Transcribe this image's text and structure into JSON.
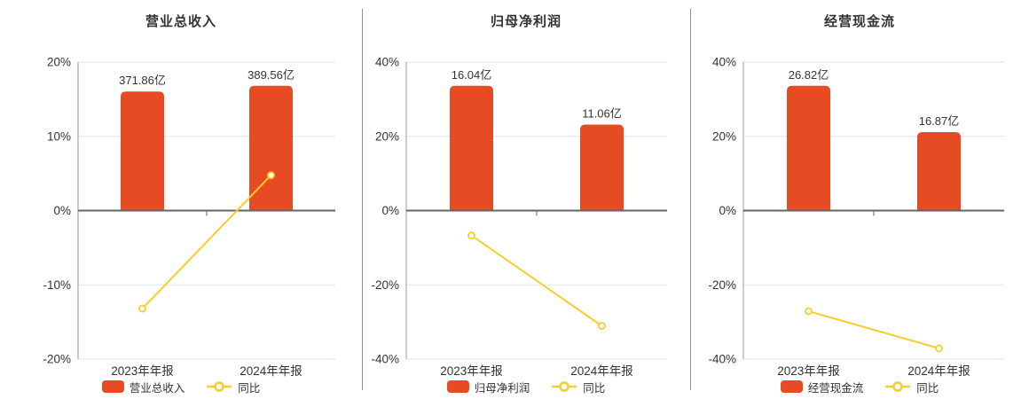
{
  "style": {
    "bar_color": "#e74b24",
    "line_color": "#f6ce2b",
    "marker_fill": "#ffffff",
    "zero_axis_color": "#666666",
    "axis_line_color": "#999999",
    "grid_color": "#dde4ee",
    "text_color": "#333333",
    "divider_color": "#909090",
    "background": "#ffffff"
  },
  "chart_data": [
    {
      "type": "bar",
      "title": "营业总收入",
      "categories": [
        "2023年年报",
        "2024年年报"
      ],
      "series": [
        {
          "name": "营业总收入",
          "kind": "bar",
          "unit": "亿",
          "values_yi": [
            371.86,
            389.56
          ],
          "labels": [
            "371.86亿",
            "389.56亿"
          ]
        },
        {
          "name": "同比",
          "kind": "line",
          "unit": "%",
          "values_pct": [
            -13.2,
            4.76
          ]
        }
      ],
      "ylim": [
        -20,
        20
      ],
      "y_ticks": [
        {
          "v": 20,
          "label": "20%"
        },
        {
          "v": 10,
          "label": "10%"
        },
        {
          "v": 0,
          "label": "0%"
        },
        {
          "v": -10,
          "label": "-10%"
        },
        {
          "v": -20,
          "label": "-20%"
        }
      ],
      "grid": true,
      "legend_position": "bottom"
    },
    {
      "type": "bar",
      "title": "归母净利润",
      "categories": [
        "2023年年报",
        "2024年年报"
      ],
      "series": [
        {
          "name": "归母净利润",
          "kind": "bar",
          "unit": "亿",
          "values_yi": [
            16.04,
            11.06
          ],
          "labels": [
            "16.04亿",
            "11.06亿"
          ]
        },
        {
          "name": "同比",
          "kind": "line",
          "unit": "%",
          "values_pct": [
            -6.7,
            -31.05
          ]
        }
      ],
      "ylim": [
        -40,
        40
      ],
      "y_ticks": [
        {
          "v": 40,
          "label": "40%"
        },
        {
          "v": 20,
          "label": "20%"
        },
        {
          "v": 0,
          "label": "0%"
        },
        {
          "v": -20,
          "label": "-20%"
        },
        {
          "v": -40,
          "label": "-40%"
        }
      ],
      "grid": true,
      "legend_position": "bottom"
    },
    {
      "type": "bar",
      "title": "经营现金流",
      "categories": [
        "2023年年报",
        "2024年年报"
      ],
      "series": [
        {
          "name": "经营现金流",
          "kind": "bar",
          "unit": "亿",
          "values_yi": [
            26.82,
            16.87
          ],
          "labels": [
            "26.82亿",
            "16.87亿"
          ]
        },
        {
          "name": "同比",
          "kind": "line",
          "unit": "%",
          "values_pct": [
            -27.1,
            -37.1
          ]
        }
      ],
      "ylim": [
        -40,
        40
      ],
      "y_ticks": [
        {
          "v": 40,
          "label": "40%"
        },
        {
          "v": 20,
          "label": "20%"
        },
        {
          "v": 0,
          "label": "0%"
        },
        {
          "v": -20,
          "label": "-20%"
        },
        {
          "v": -40,
          "label": "-40%"
        }
      ],
      "grid": true,
      "legend_position": "bottom"
    }
  ]
}
